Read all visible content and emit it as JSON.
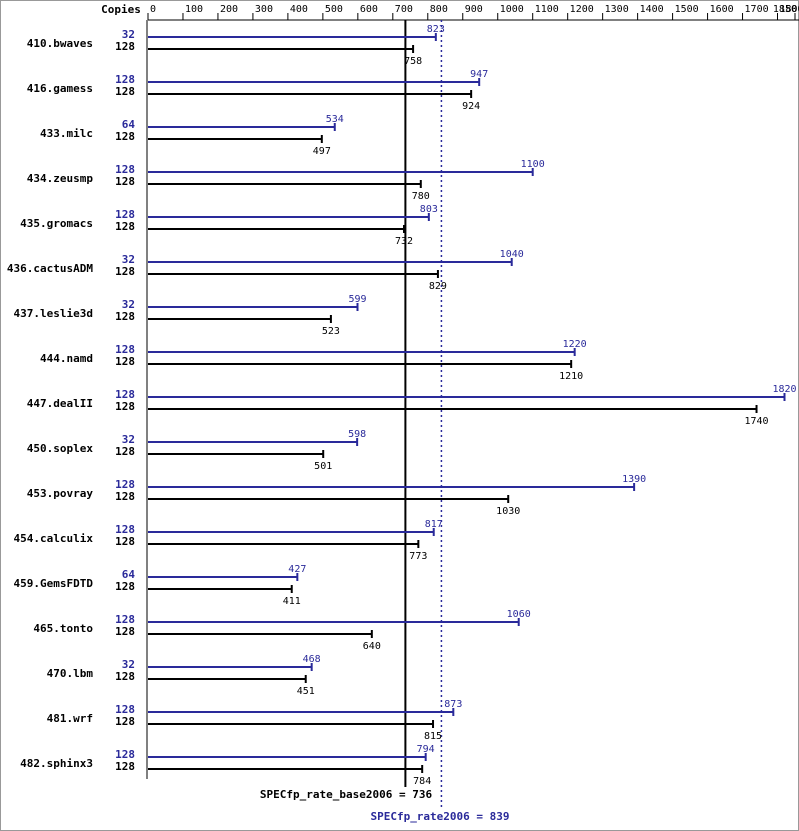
{
  "chart_data": {
    "type": "bar",
    "orientation": "horizontal",
    "copies_label": "Copies",
    "categories": [
      "410.bwaves",
      "416.gamess",
      "433.milc",
      "434.zeusmp",
      "435.gromacs",
      "436.cactusADM",
      "437.leslie3d",
      "444.namd",
      "447.dealII",
      "450.soplex",
      "453.povray",
      "454.calculix",
      "459.GemsFDTD",
      "465.tonto",
      "470.lbm",
      "481.wrf",
      "482.sphinx3"
    ],
    "series": [
      {
        "color": "#2a2a9a",
        "copies": [
          32,
          128,
          64,
          128,
          128,
          32,
          32,
          128,
          128,
          32,
          128,
          128,
          64,
          128,
          32,
          128,
          128
        ],
        "values": [
          823,
          947,
          534,
          1100,
          803,
          1040,
          599,
          1220,
          1820,
          598,
          1390,
          817,
          427,
          1060,
          468,
          873,
          794
        ]
      },
      {
        "color": "#000000",
        "copies": [
          128,
          128,
          128,
          128,
          128,
          128,
          128,
          128,
          128,
          128,
          128,
          128,
          128,
          128,
          128,
          128,
          128
        ],
        "values": [
          758,
          924,
          497,
          780,
          732,
          829,
          523,
          1210,
          1740,
          501,
          1030,
          773,
          411,
          640,
          451,
          815,
          784
        ]
      }
    ],
    "xlim": [
      0,
      1850
    ],
    "xticks": [
      0,
      100,
      200,
      300,
      400,
      500,
      600,
      700,
      800,
      900,
      1000,
      1100,
      1200,
      1300,
      1400,
      1500,
      1600,
      1700,
      1800,
      1850
    ],
    "reference_lines": [
      {
        "label": "SPECfp_rate_base2006 = 736",
        "value": 736,
        "color": "#000000",
        "style": "solid"
      },
      {
        "label": "SPECfp_rate2006 = 839",
        "value": 839,
        "color": "#2a2a9a",
        "style": "dotted"
      }
    ]
  }
}
